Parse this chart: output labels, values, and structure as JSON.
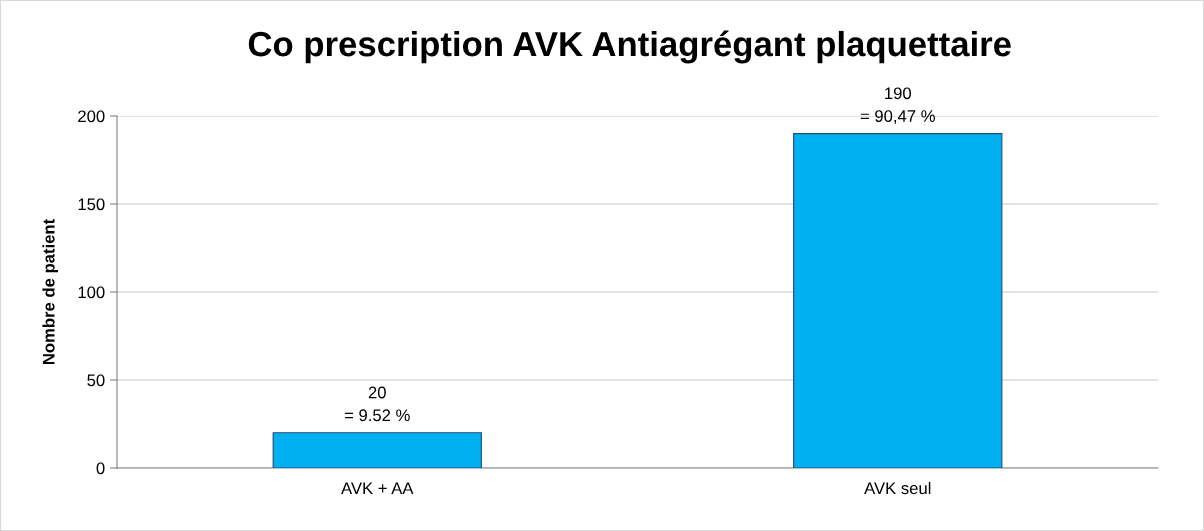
{
  "chart_data": {
    "type": "bar",
    "title": "Co prescription AVK Antiagrégant plaquettaire",
    "ylabel": "Nombre de patient",
    "categories": [
      "AVK + AA",
      "AVK seul"
    ],
    "values": [
      20,
      190
    ],
    "color": "#00b0f0",
    "value_labels": [
      "20\n= 9.52 %",
      "190\n= 90,47 %"
    ],
    "ylim": [
      0,
      200
    ],
    "yticks": [
      0,
      50,
      100,
      150,
      200
    ],
    "grid": "y",
    "legend": false
  }
}
